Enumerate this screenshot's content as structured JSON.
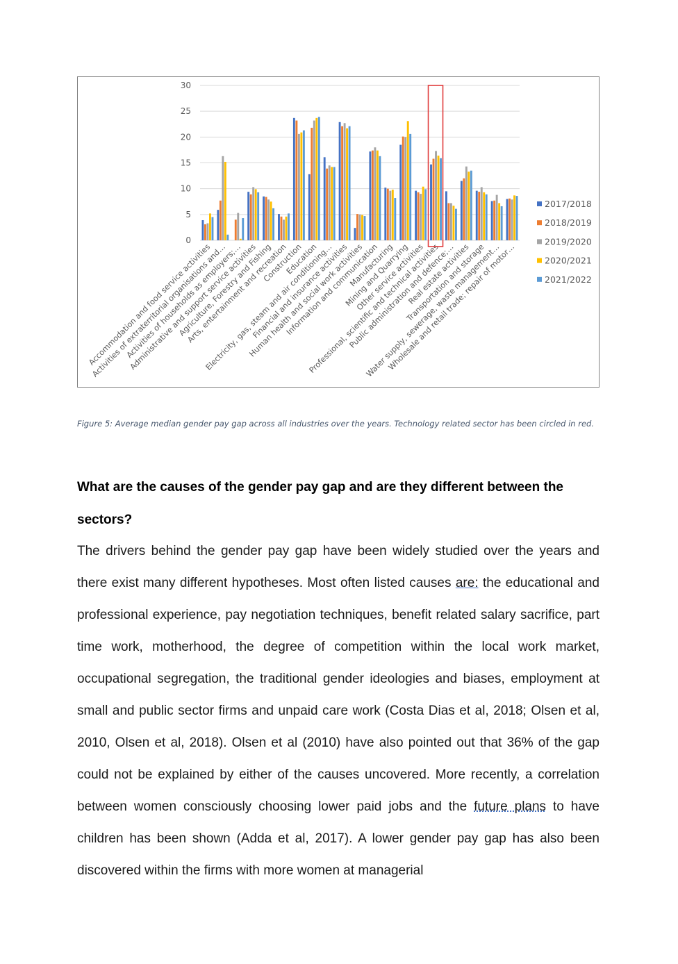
{
  "figure": {
    "caption": "Figure 5: Average median gender pay gap across all industries over the years. Technology related sector has been circled in red."
  },
  "chart_data": {
    "type": "bar",
    "title": "",
    "xlabel": "",
    "ylabel": "",
    "ylim": [
      0,
      30
    ],
    "yticks": [
      0,
      5,
      10,
      15,
      20,
      25,
      30
    ],
    "grid": true,
    "legend_position": "right",
    "highlight": {
      "category": "Professional, scientific and technical activities",
      "color": "#e03c3c"
    },
    "categories": [
      "Accommodation and food service activities",
      "Activities of extraterritorial organisations and…",
      "Activities of households as employers;…",
      "Administrative and support service activities",
      "Agriculture, Forestry and Fishing",
      "Arts, entertainment and recreation",
      "Construction",
      "Education",
      "Electricity, gas, steam and air conditioning…",
      "Financial and insurance activities",
      "Human health and social work activities",
      "Information and communication",
      "Manufacturing",
      "Mining and Quarrying",
      "Other service activities",
      "Professional, scientific and technical activities",
      "Public administration and defence;…",
      "Real estate activities",
      "Transportation and storage",
      "Water supply, sewerage, waste management…",
      "Wholesale and retail trade; repair of motor…"
    ],
    "series": [
      {
        "name": "2017/2018",
        "color": "#4472c4",
        "values": [
          3.9,
          5.9,
          0,
          9.4,
          8.5,
          5.1,
          23.7,
          12.8,
          16.1,
          22.9,
          2.4,
          17.2,
          10.2,
          18.5,
          9.6,
          14.7,
          9.5,
          11.5,
          9.6,
          7.6,
          8.0
        ]
      },
      {
        "name": "2018/2019",
        "color": "#ed7d31",
        "values": [
          3.1,
          7.7,
          4.0,
          8.9,
          8.4,
          4.6,
          23.2,
          21.8,
          13.9,
          22.1,
          5.1,
          17.4,
          10.0,
          20.1,
          9.3,
          15.8,
          7.2,
          12.0,
          9.4,
          7.7,
          8.1
        ]
      },
      {
        "name": "2019/2020",
        "color": "#a5a5a5",
        "values": [
          3.3,
          16.3,
          5.3,
          10.3,
          7.9,
          4.0,
          20.6,
          23.2,
          14.5,
          22.7,
          5.0,
          18.0,
          9.6,
          20.0,
          9.0,
          17.3,
          7.2,
          14.3,
          10.3,
          8.8,
          7.9
        ]
      },
      {
        "name": "2020/2021",
        "color": "#ffc000",
        "values": [
          5.2,
          15.2,
          0.3,
          9.9,
          7.5,
          4.6,
          20.9,
          23.7,
          14.2,
          21.7,
          4.9,
          17.4,
          9.8,
          23.1,
          10.4,
          16.4,
          6.7,
          13.3,
          9.3,
          7.2,
          8.7
        ]
      },
      {
        "name": "2021/2022",
        "color": "#5b9bd5",
        "values": [
          4.5,
          1.1,
          4.3,
          9.3,
          6.2,
          5.2,
          21.3,
          23.9,
          14.2,
          22.1,
          4.7,
          16.3,
          8.2,
          20.6,
          9.9,
          15.9,
          6.1,
          13.5,
          8.9,
          6.6,
          8.6
        ]
      }
    ]
  },
  "section": {
    "heading": "What are the causes of the gender pay gap and are they different between the sectors?",
    "paragraph": {
      "part1": "The drivers behind the gender pay gap have been widely studied over the years and there exist many different hypotheses. Most often listed causes ",
      "link1": "are:",
      "part2": " the educational and professional experience, pay negotiation techniques, benefit related salary sacrifice, part time work, motherhood, the degree of competition within the local work market, occupational segregation, the traditional gender ideologies and biases, employment at small and public sector firms and unpaid care work (Costa Dias et al, 2018; Olsen et al, 2010, Olsen et al, 2018). Olsen et al (2010) have also pointed out that 36% of the gap could not be explained by either of the causes uncovered. More recently, a correlation between women consciously choosing lower paid jobs and the ",
      "link2": "future plans",
      "part3": " to have children has been shown (Adda et al, 2017). A lower gender pay gap has also been discovered within the firms with more women at managerial"
    }
  }
}
